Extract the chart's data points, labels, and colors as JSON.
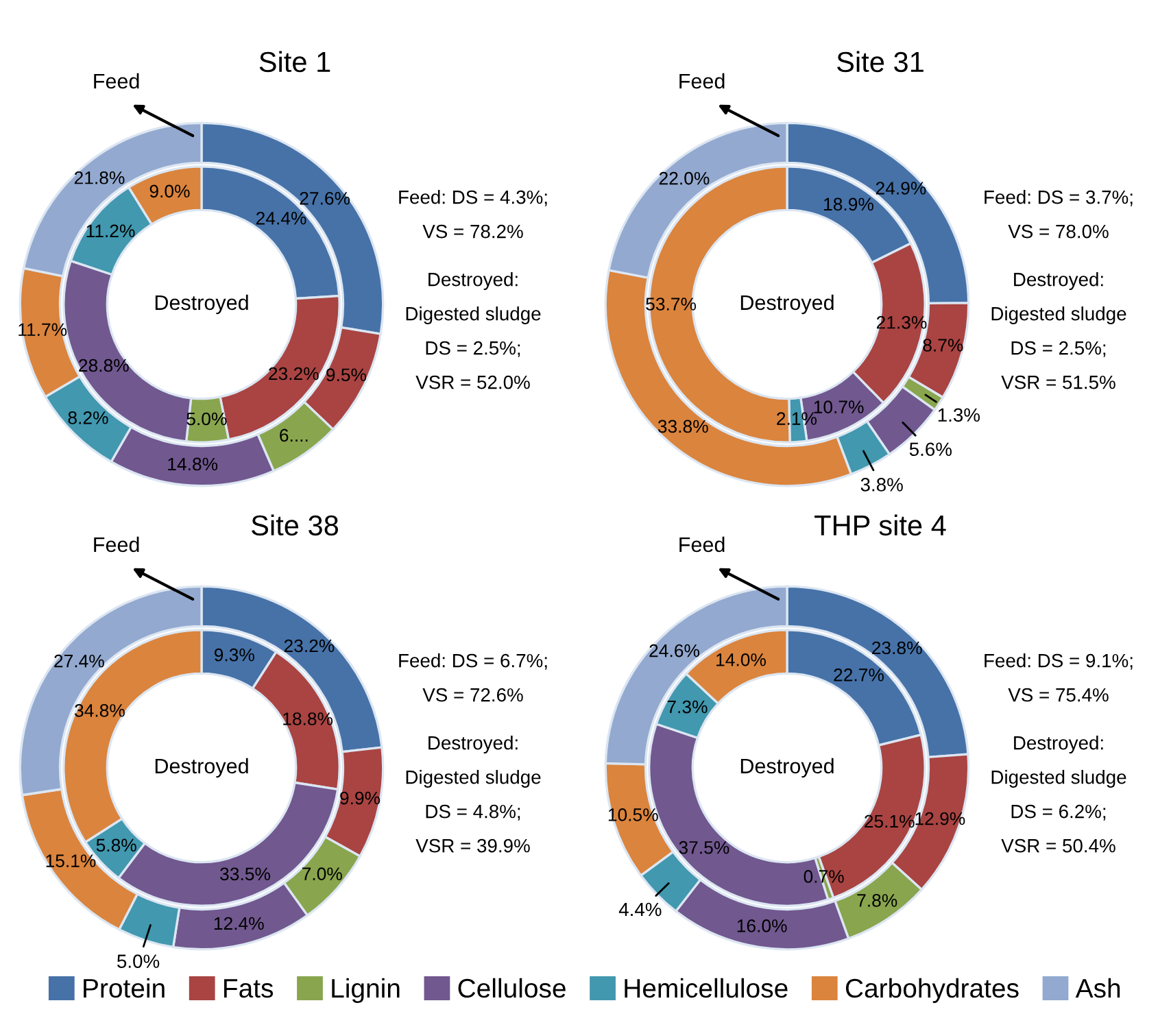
{
  "chart_data": [
    {
      "type": "donut",
      "title": "Site 1",
      "categories": [
        "Protein",
        "Fats",
        "Lignin",
        "Cellulose",
        "Hemicellulose",
        "Carbohydrates",
        "Ash"
      ],
      "colors": [
        "#4672a8",
        "#a94442",
        "#89a54e",
        "#71588f",
        "#4198af",
        "#db843d",
        "#93a9cf"
      ],
      "legend": "bottom",
      "series": [
        {
          "name": "Feed",
          "values": [
            27.6,
            9.5,
            6.4,
            14.8,
            8.2,
            11.7,
            21.8
          ],
          "value_labels": [
            "27.6%",
            "9.5%",
            "6....",
            "14.8%",
            "8.2%",
            "11.7%",
            "21.8%"
          ]
        },
        {
          "name": "Destroyed",
          "values": [
            24.4,
            23.2,
            5.0,
            28.8,
            11.2,
            9.0,
            null
          ],
          "value_labels": [
            "24.4%",
            "23.2%",
            "5.0%",
            "28.8%",
            "11.2%",
            "9.0%",
            null
          ]
        }
      ],
      "annotations": [
        "Feed: DS = 4.3%;",
        "VS = 78.2%",
        "Destroyed:",
        "Digested sludge",
        "DS = 2.5%;",
        "VSR = 52.0%"
      ]
    },
    {
      "type": "donut",
      "title": "Site 31",
      "categories": [
        null,
        null,
        null,
        null,
        null,
        null,
        null
      ],
      "colors": [
        "#4672a8",
        "#a94442",
        "#89a54e",
        "#71588f",
        "#4198af",
        "#db843d",
        "#93a9cf"
      ],
      "series": [
        {
          "name": "Feed",
          "values": [
            24.9,
            8.7,
            1.3,
            5.6,
            3.8,
            33.8,
            22.0
          ],
          "value_labels": [
            "24.9%",
            "8.7%",
            "1.3%",
            "5.6%",
            "3.8%",
            "33.8%",
            "22.0%"
          ]
        },
        {
          "name": "Destroyed",
          "values": [
            18.9,
            21.3,
            null,
            10.7,
            2.1,
            53.7,
            null
          ],
          "value_labels": [
            "18.9%",
            "21.3%",
            null,
            "10.7%",
            "2.1%",
            "53.7%",
            null
          ]
        }
      ],
      "annotations": [
        "Feed: DS = 3.7%;",
        "VS = 78.0%",
        "Destroyed:",
        "Digested sludge",
        "DS = 2.5%;",
        "VSR = 51.5%"
      ]
    },
    {
      "type": "donut",
      "title": "Site 38",
      "categories": [
        null,
        null,
        null,
        null,
        null,
        null,
        null
      ],
      "colors": [
        "#4672a8",
        "#a94442",
        "#89a54e",
        "#71588f",
        "#4198af",
        "#db843d",
        "#93a9cf"
      ],
      "series": [
        {
          "name": "Feed",
          "values": [
            23.2,
            9.9,
            7.0,
            12.4,
            5.0,
            15.1,
            27.4
          ],
          "value_labels": [
            "23.2%",
            "9.9%",
            "7.0%",
            "12.4%",
            "5.0%",
            "15.1%",
            "27.4%"
          ]
        },
        {
          "name": "Destroyed",
          "values": [
            9.3,
            18.8,
            null,
            33.5,
            5.8,
            34.8,
            null
          ],
          "value_labels": [
            "9.3%",
            "18.8%",
            null,
            "33.5%",
            "5.8%",
            "34.8%",
            null
          ]
        }
      ],
      "annotations": [
        "Feed: DS = 6.7%;",
        "VS = 72.6%",
        "Destroyed:",
        "Digested sludge",
        "DS = 4.8%;",
        "VSR = 39.9%"
      ]
    },
    {
      "type": "donut",
      "title": "THP site 4",
      "categories": [
        null,
        null,
        null,
        null,
        null,
        null,
        null
      ],
      "colors": [
        "#4672a8",
        "#a94442",
        "#89a54e",
        "#71588f",
        "#4198af",
        "#db843d",
        "#93a9cf"
      ],
      "series": [
        {
          "name": "Feed",
          "values": [
            23.8,
            12.9,
            7.8,
            16.0,
            4.4,
            10.5,
            24.6
          ],
          "value_labels": [
            "23.8%",
            "12.9%",
            "7.8%",
            "16.0%",
            "4.4%",
            "10.5%",
            "24.6%"
          ]
        },
        {
          "name": "Destroyed",
          "values": [
            22.7,
            25.1,
            0.7,
            37.5,
            7.3,
            14.0,
            null
          ],
          "value_labels": [
            "22.7%",
            "25.1%",
            "0.7%",
            "37.5%",
            "7.3%",
            "14.0%",
            null
          ]
        }
      ],
      "annotations": [
        "Feed: DS = 9.1%;",
        "VS = 75.4%",
        "Destroyed:",
        "Digested sludge",
        "DS = 6.2%;",
        "VSR = 50.4%"
      ]
    }
  ]
}
